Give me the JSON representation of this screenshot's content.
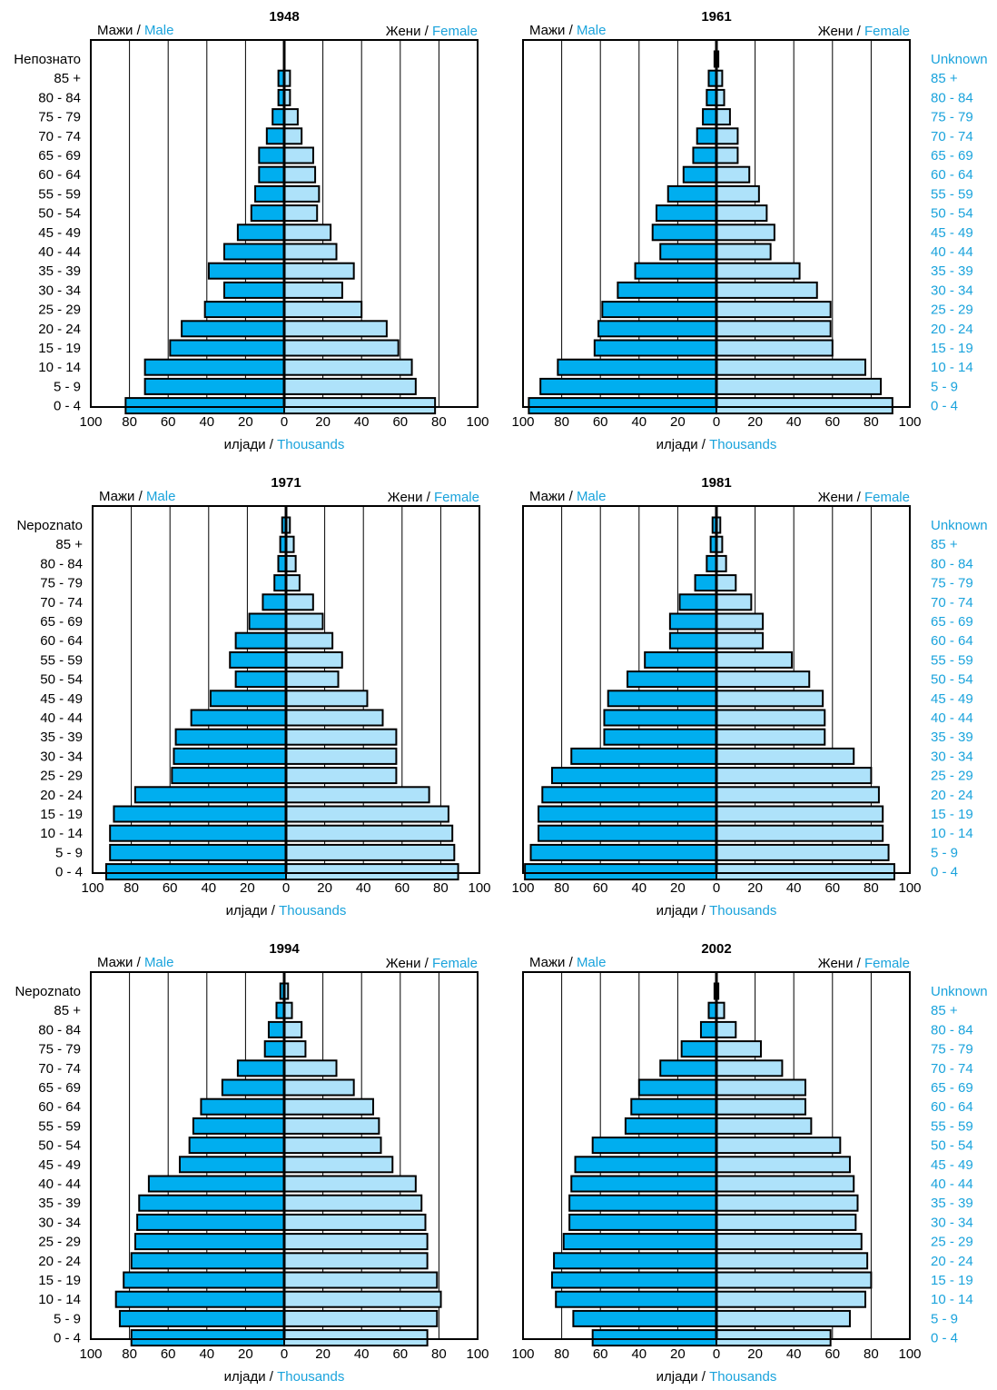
{
  "labels": {
    "male_cyr": "Мажи",
    "male_en": "Male",
    "female_cyr": "Жени",
    "female_en": "Female",
    "thousands_cyr": "илјади",
    "thousands_en": "Thousands",
    "slash": " / "
  },
  "colors": {
    "male": "#00aeef",
    "female": "#aee2fa",
    "english_text": "#1aa3dc",
    "outline": "#000000"
  },
  "chart_data": [
    {
      "type": "bar",
      "title": "1948",
      "xlim": [
        -100,
        100
      ],
      "ticks": [
        "100",
        "80",
        "60",
        "40",
        "20",
        "0",
        "20",
        "40",
        "60",
        "80",
        "100"
      ],
      "age_groups_left": [
        "Непознато",
        "85 +",
        "80 - 84",
        "75 - 79",
        "70 - 74",
        "65 - 69",
        "60 - 64",
        "55 - 59",
        "50 - 54",
        "45 - 49",
        "40 - 44",
        "35 - 39",
        "30 - 34",
        "25 - 29",
        "20 - 24",
        "15 - 19",
        "10 - 14",
        "5 - 9",
        "0 - 4"
      ],
      "age_groups_right": [],
      "series": [
        {
          "name": "Male",
          "values": [
            0,
            3,
            3,
            6,
            9,
            13,
            13,
            15,
            17,
            24,
            31,
            39,
            31,
            41,
            53,
            59,
            72,
            72,
            82
          ]
        },
        {
          "name": "Female",
          "values": [
            0,
            3,
            3,
            7,
            9,
            15,
            16,
            18,
            17,
            24,
            27,
            36,
            30,
            40,
            53,
            59,
            66,
            68,
            78
          ]
        }
      ]
    },
    {
      "type": "bar",
      "title": "1961",
      "xlim": [
        -100,
        100
      ],
      "ticks": [
        "100",
        "80",
        "60",
        "40",
        "20",
        "0",
        "20",
        "40",
        "60",
        "80",
        "100"
      ],
      "age_groups_left": [],
      "age_groups_right": [
        "Unknown",
        "85 +",
        "80 - 84",
        "75 - 79",
        "70 - 74",
        "65 - 69",
        "60 - 64",
        "55 - 59",
        "50 - 54",
        "45 - 49",
        "40 - 44",
        "35 - 39",
        "30 - 34",
        "25 - 29",
        "20 - 24",
        "15 - 19",
        "10 - 14",
        "5 - 9",
        "0 - 4"
      ],
      "series": [
        {
          "name": "Male",
          "values": [
            1,
            4,
            5,
            7,
            10,
            12,
            17,
            25,
            31,
            33,
            29,
            42,
            51,
            59,
            61,
            63,
            82,
            91,
            97
          ]
        },
        {
          "name": "Female",
          "values": [
            1,
            3,
            4,
            7,
            11,
            11,
            17,
            22,
            26,
            30,
            28,
            43,
            52,
            59,
            59,
            60,
            77,
            85,
            91
          ]
        }
      ]
    },
    {
      "type": "bar",
      "title": "1971",
      "xlim": [
        -100,
        100
      ],
      "ticks": [
        "100",
        "80",
        "60",
        "40",
        "20",
        "0",
        "20",
        "40",
        "60",
        "80",
        "100"
      ],
      "age_groups_left": [
        "Nepoznato",
        "85 +",
        "80 - 84",
        "75 - 79",
        "70 - 74",
        "65 - 69",
        "60 - 64",
        "55 - 59",
        "50 - 54",
        "45 - 49",
        "40 - 44",
        "35 - 39",
        "30 - 34",
        "25 - 29",
        "20 - 24",
        "15 - 19",
        "10 - 14",
        "5 - 9",
        "0 - 4"
      ],
      "age_groups_right": [],
      "series": [
        {
          "name": "Male",
          "values": [
            2,
            3,
            4,
            6,
            12,
            19,
            26,
            29,
            26,
            39,
            49,
            57,
            58,
            59,
            78,
            89,
            91,
            91,
            93
          ]
        },
        {
          "name": "Female",
          "values": [
            2,
            4,
            5,
            7,
            14,
            19,
            24,
            29,
            27,
            42,
            50,
            57,
            57,
            57,
            74,
            84,
            86,
            87,
            89
          ]
        }
      ]
    },
    {
      "type": "bar",
      "title": "1981",
      "xlim": [
        -100,
        100
      ],
      "ticks": [
        "100",
        "80",
        "60",
        "40",
        "20",
        "0",
        "20",
        "40",
        "60",
        "80",
        "100"
      ],
      "age_groups_left": [],
      "age_groups_right": [
        "Unknown",
        "85 +",
        "80 - 84",
        "75 - 79",
        "70 - 74",
        "65 - 69",
        "60 - 64",
        "55 - 59",
        "50 - 54",
        "45 - 49",
        "40 - 44",
        "35 - 39",
        "30 - 34",
        "25 - 29",
        "20 - 24",
        "15 - 19",
        "10 - 14",
        "5 - 9",
        "0 - 4"
      ],
      "series": [
        {
          "name": "Male",
          "values": [
            2,
            3,
            5,
            11,
            19,
            24,
            24,
            37,
            46,
            56,
            58,
            58,
            75,
            85,
            90,
            92,
            92,
            96,
            99
          ]
        },
        {
          "name": "Female",
          "values": [
            2,
            3,
            5,
            10,
            18,
            24,
            24,
            39,
            48,
            55,
            56,
            56,
            71,
            80,
            84,
            86,
            86,
            89,
            92
          ]
        }
      ]
    },
    {
      "type": "bar",
      "title": "1994",
      "xlim": [
        -100,
        100
      ],
      "ticks": [
        "100",
        "80",
        "60",
        "40",
        "20",
        "0",
        "20",
        "40",
        "60",
        "80",
        "100"
      ],
      "age_groups_left": [
        "Nepoznato",
        "85 +",
        "80 - 84",
        "75 - 79",
        "70 - 74",
        "65 - 69",
        "60 - 64",
        "55 - 59",
        "50 - 54",
        "45 - 49",
        "40 - 44",
        "35 - 39",
        "30 - 34",
        "25 - 29",
        "20 - 24",
        "15 - 19",
        "10 - 14",
        "5 - 9",
        "0 - 4"
      ],
      "age_groups_right": [],
      "series": [
        {
          "name": "Male",
          "values": [
            2,
            4,
            8,
            10,
            24,
            32,
            43,
            47,
            49,
            54,
            70,
            75,
            76,
            77,
            79,
            83,
            87,
            85,
            79
          ]
        },
        {
          "name": "Female",
          "values": [
            2,
            4,
            9,
            11,
            27,
            36,
            46,
            49,
            50,
            56,
            68,
            71,
            73,
            74,
            74,
            79,
            81,
            79,
            74
          ]
        }
      ]
    },
    {
      "type": "bar",
      "title": "2002",
      "xlim": [
        -100,
        100
      ],
      "ticks": [
        "100",
        "80",
        "60",
        "40",
        "20",
        "0",
        "20",
        "40",
        "60",
        "80",
        "100"
      ],
      "age_groups_left": [],
      "age_groups_right": [
        "Unknown",
        "85 +",
        "80 - 84",
        "75 - 79",
        "70 - 74",
        "65 - 69",
        "60 - 64",
        "55 - 59",
        "50 - 54",
        "45 - 49",
        "40 - 44",
        "35 - 39",
        "30 - 34",
        "25 - 29",
        "20 - 24",
        "15 - 19",
        "10 - 14",
        "5 - 9",
        "0 - 4"
      ],
      "series": [
        {
          "name": "Male",
          "values": [
            1,
            4,
            8,
            18,
            29,
            40,
            44,
            47,
            64,
            73,
            75,
            76,
            76,
            79,
            84,
            85,
            83,
            74,
            64
          ]
        },
        {
          "name": "Female",
          "values": [
            1,
            4,
            10,
            23,
            34,
            46,
            46,
            49,
            64,
            69,
            71,
            73,
            72,
            75,
            78,
            80,
            77,
            69,
            59
          ]
        }
      ]
    }
  ]
}
